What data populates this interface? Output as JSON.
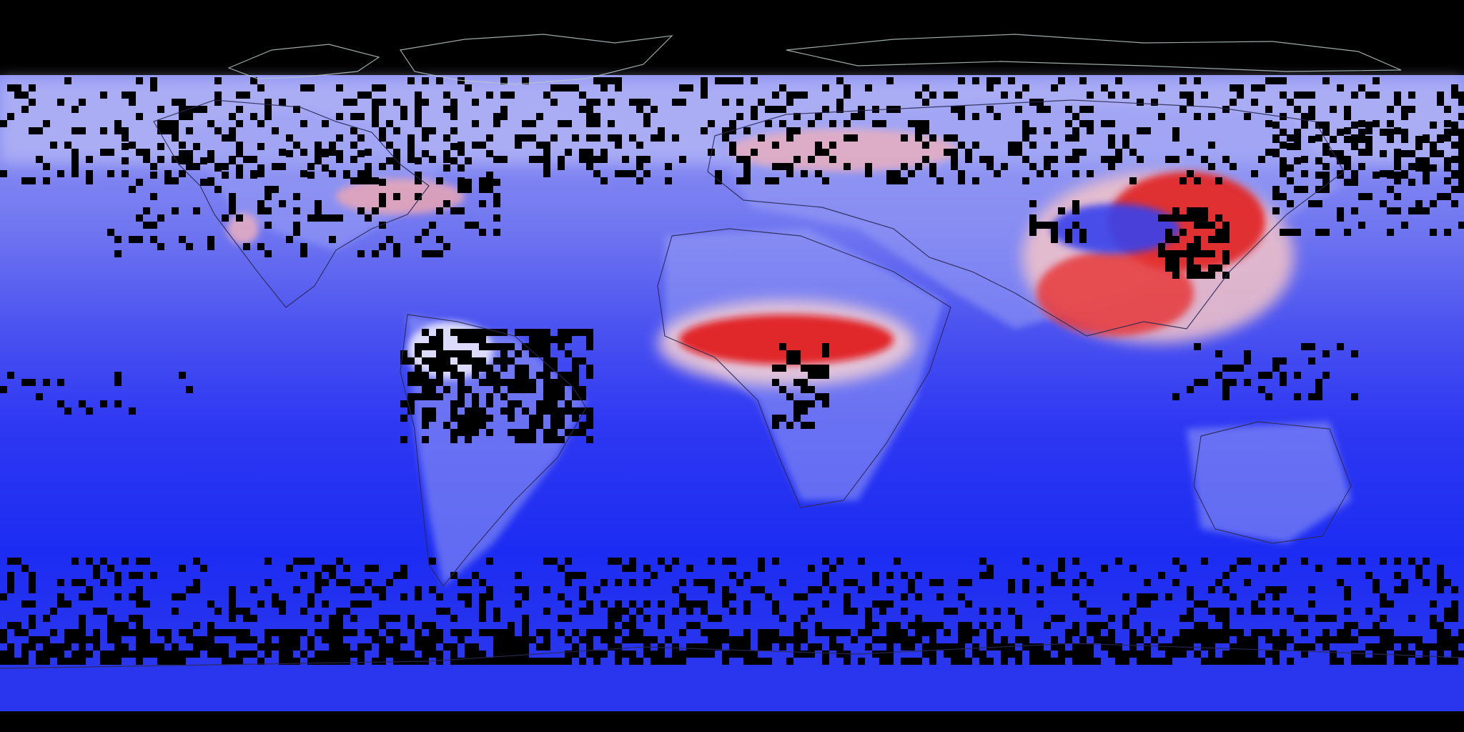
{
  "map": {
    "projection": "equirectangular",
    "extent": {
      "lon": [
        -180,
        180
      ],
      "lat": [
        -90,
        90
      ]
    },
    "colors": {
      "background": "#000000",
      "no_data": "#000000",
      "coastline": "#2a2a55",
      "coastline_arctic": "#b8c8c8",
      "scale_low": "#1c2cf2",
      "scale_mid_low": "#6c74f0",
      "scale_mid": "#c8caf8",
      "scale_white": "#ffffff",
      "scale_high": "#e60808"
    },
    "legend_shown": false,
    "title_shown": false
  }
}
